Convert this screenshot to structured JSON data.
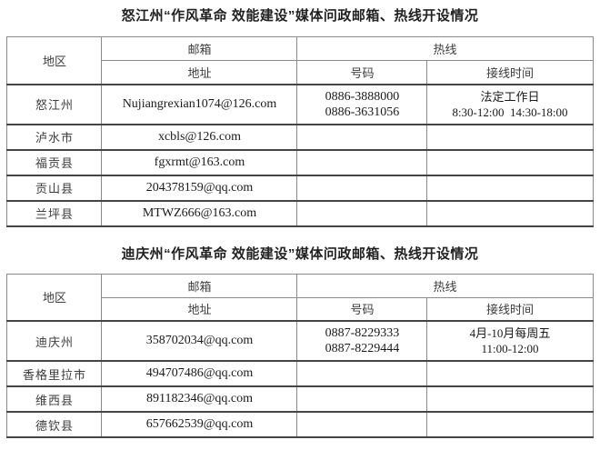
{
  "tables": [
    {
      "title": "怒江州“作风革命 效能建设”媒体问政邮箱、热线开设情况",
      "headers": {
        "region": "地区",
        "mailbox_group": "邮箱",
        "hotline_group": "热线",
        "address": "地址",
        "number": "号码",
        "time": "接线时间"
      },
      "rows": [
        {
          "region": "怒江州",
          "address": "Nujiangrexian1074@126.com",
          "number1": "0886-3888000",
          "number2": "0886-3631056",
          "time1": "法定工作日",
          "time2": "8:30-12:00  14:30-18:00"
        },
        {
          "region": "泸水市",
          "address": "xcbls@126.com"
        },
        {
          "region": "福贡县",
          "address": "fgxrmt@163.com"
        },
        {
          "region": "贡山县",
          "address": "204378159@qq.com"
        },
        {
          "region": "兰坪县",
          "address": "MTWZ666@163.com"
        }
      ]
    },
    {
      "title": "迪庆州“作风革命 效能建设”媒体问政邮箱、热线开设情况",
      "headers": {
        "region": "地区",
        "mailbox_group": "邮箱",
        "hotline_group": "热线",
        "address": "地址",
        "number": "号码",
        "time": "接线时间"
      },
      "rows": [
        {
          "region": "迪庆州",
          "address": "358702034@qq.com",
          "number1": "0887-8229333",
          "number2": "0887-8229444",
          "time1": "4月-10月每周五",
          "time2": "11:00-12:00"
        },
        {
          "region": "香格里拉市",
          "address": "494707486@qq.com"
        },
        {
          "region": "维西县",
          "address": "891182346@qq.com"
        },
        {
          "region": "德钦县",
          "address": "657662539@qq.com"
        }
      ]
    }
  ]
}
